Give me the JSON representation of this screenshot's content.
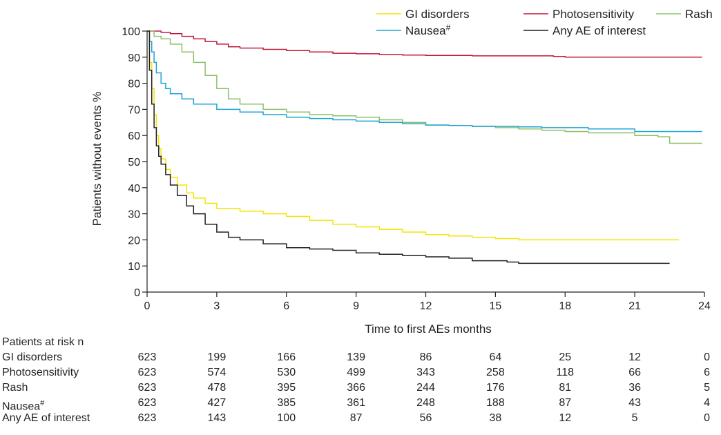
{
  "chart_data": {
    "type": "line",
    "title": "",
    "xlabel": "Time to first AEs months",
    "ylabel": "Patients without events %",
    "xlim": [
      0,
      24
    ],
    "ylim": [
      0,
      100
    ],
    "x_ticks": [
      0,
      3,
      6,
      9,
      12,
      15,
      18,
      21,
      24
    ],
    "y_ticks": [
      0,
      10,
      20,
      30,
      40,
      50,
      60,
      70,
      80,
      90,
      100
    ],
    "legend_placement": "top-right",
    "series": [
      {
        "name": "GI disorders",
        "color": "#f2e600",
        "x": [
          0,
          0.1,
          0.2,
          0.3,
          0.4,
          0.5,
          0.6,
          0.8,
          1.0,
          1.3,
          1.7,
          2.0,
          2.5,
          3.0,
          4.0,
          5.0,
          6.0,
          7.0,
          8.0,
          9.0,
          10.0,
          11.0,
          12.0,
          13.0,
          14.0,
          15.0,
          16.0,
          17.0,
          18.0,
          20.0,
          22.0,
          22.9
        ],
        "y": [
          100,
          88,
          78,
          68,
          60,
          55,
          51,
          47,
          44,
          41,
          38,
          36,
          34,
          32,
          31,
          30,
          29,
          27.5,
          26,
          25,
          24,
          23,
          22,
          21.5,
          21,
          20.5,
          20,
          20,
          20,
          20,
          20,
          20
        ]
      },
      {
        "name": "Photosensitivity",
        "color": "#c4183c",
        "x": [
          0,
          0.3,
          0.6,
          1.0,
          1.5,
          2.0,
          2.5,
          3.0,
          3.5,
          4.0,
          5.0,
          6.0,
          7.0,
          8.0,
          9.0,
          10.0,
          11.0,
          12.0,
          14.0,
          16.0,
          17.5,
          18.0,
          20.0,
          22.0,
          23.9
        ],
        "y": [
          100,
          100,
          99.5,
          99,
          98,
          97,
          96,
          95,
          94,
          93.5,
          93,
          92.5,
          92,
          91.5,
          91.3,
          91,
          90.8,
          90.7,
          90.5,
          90.5,
          90.3,
          90,
          90,
          90,
          90
        ]
      },
      {
        "name": "Rash",
        "color": "#8cc068",
        "x": [
          0,
          0.3,
          0.6,
          1.0,
          1.5,
          2.0,
          2.5,
          3.0,
          3.5,
          4.0,
          5.0,
          6.0,
          7.0,
          8.0,
          9.0,
          10.0,
          11.0,
          12.0,
          13.0,
          14.0,
          15.0,
          16.0,
          17.0,
          18.0,
          19.0,
          20.0,
          21.0,
          22.0,
          22.5,
          23.9
        ],
        "y": [
          100,
          98,
          97,
          95,
          92,
          88,
          83,
          78,
          74,
          72,
          70,
          69,
          68,
          67.5,
          67,
          66,
          65,
          64,
          63.8,
          63.5,
          63,
          62.5,
          62,
          61.5,
          61,
          61,
          60,
          59.5,
          57,
          57
        ]
      },
      {
        "name": "Nausea#",
        "color": "#1ba3d6",
        "x": [
          0,
          0.1,
          0.2,
          0.3,
          0.4,
          0.6,
          0.8,
          1.0,
          1.5,
          2.0,
          3.0,
          4.0,
          5.0,
          6.0,
          7.0,
          8.0,
          9.0,
          10.0,
          11.0,
          12.0,
          13.0,
          14.0,
          15.0,
          16.0,
          17.0,
          18.0,
          19.0,
          20.0,
          21.0,
          22.0,
          23.9
        ],
        "y": [
          100,
          96,
          92,
          88,
          84,
          80,
          78,
          76,
          74,
          72,
          70,
          69,
          68,
          67,
          66.5,
          66,
          65.5,
          65,
          64.5,
          64,
          63.8,
          63.5,
          63.5,
          63.3,
          63,
          63,
          62.5,
          62.5,
          61.5,
          61.5,
          61.5
        ]
      },
      {
        "name": "Any AE of interest",
        "color": "#231f20",
        "x": [
          0,
          0.1,
          0.2,
          0.3,
          0.4,
          0.5,
          0.6,
          0.8,
          1.0,
          1.3,
          1.7,
          2.0,
          2.5,
          3.0,
          3.5,
          4.0,
          5.0,
          6.0,
          7.0,
          8.0,
          9.0,
          10.0,
          11.0,
          12.0,
          13.0,
          14.0,
          15.0,
          15.5,
          16.0,
          18.0,
          20.0,
          22.0,
          22.5
        ],
        "y": [
          100,
          85,
          72,
          63,
          56,
          52,
          49,
          45,
          41,
          37,
          33,
          30,
          26,
          23,
          21,
          20,
          18.5,
          17,
          16.5,
          16,
          15,
          14.5,
          14,
          13.5,
          13,
          12,
          12,
          11.5,
          11,
          11,
          11,
          11,
          11
        ]
      }
    ]
  },
  "risk_table": {
    "title": "Patients at risk n",
    "times": [
      0,
      3,
      6,
      9,
      12,
      15,
      18,
      21,
      24
    ],
    "rows": [
      {
        "label": "GI disorders",
        "values": [
          "623",
          "199",
          "166",
          "139",
          "86",
          "64",
          "25",
          "12",
          "0"
        ]
      },
      {
        "label": "Photosensitivity",
        "values": [
          "623",
          "574",
          "530",
          "499",
          "343",
          "258",
          "118",
          "66",
          "6"
        ]
      },
      {
        "label": "Rash",
        "values": [
          "623",
          "478",
          "395",
          "366",
          "244",
          "176",
          "81",
          "36",
          "5"
        ]
      },
      {
        "label": "Nausea#",
        "values": [
          "623",
          "427",
          "385",
          "361",
          "248",
          "188",
          "87",
          "43",
          "4"
        ]
      },
      {
        "label": "Any AE of interest",
        "values": [
          "623",
          "143",
          "100",
          "87",
          "56",
          "38",
          "12",
          "5",
          "0"
        ]
      }
    ]
  }
}
